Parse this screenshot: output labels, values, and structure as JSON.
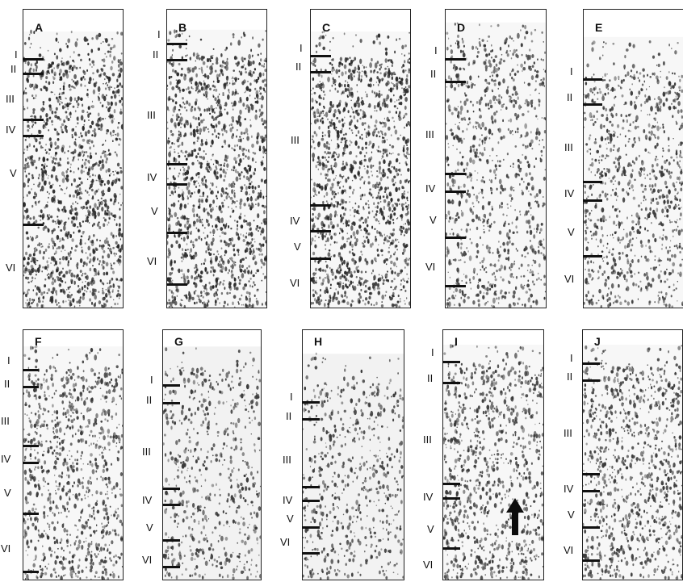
{
  "panels": [
    {
      "id": "A",
      "layers": [
        "I",
        "II",
        "III",
        "IV",
        "V",
        "VI"
      ],
      "stain": "dark"
    },
    {
      "id": "B",
      "layers": [
        "I",
        "II",
        "III",
        "IV",
        "V",
        "VI"
      ],
      "stain": "dark"
    },
    {
      "id": "C",
      "layers": [
        "I",
        "II",
        "III",
        "IV",
        "V",
        "VI"
      ],
      "stain": "dark"
    },
    {
      "id": "D",
      "layers": [
        "I",
        "II",
        "III",
        "IV",
        "V",
        "VI"
      ],
      "stain": "light"
    },
    {
      "id": "E",
      "layers": [
        "I",
        "II",
        "III",
        "IV",
        "V",
        "VI"
      ],
      "stain": "light"
    },
    {
      "id": "F",
      "layers": [
        "I",
        "II",
        "III",
        "IV",
        "V",
        "VI"
      ],
      "stain": "light"
    },
    {
      "id": "G",
      "layers": [
        "I",
        "II",
        "III",
        "IV",
        "V",
        "VI"
      ],
      "stain": "pale"
    },
    {
      "id": "H",
      "layers": [
        "I",
        "II",
        "III",
        "IV",
        "V",
        "VI"
      ],
      "stain": "pale"
    },
    {
      "id": "I",
      "layers": [
        "I",
        "II",
        "III",
        "IV",
        "V",
        "VI"
      ],
      "stain": "light",
      "arrow": true
    },
    {
      "id": "J",
      "layers": [
        "I",
        "II",
        "III",
        "IV",
        "V",
        "VI"
      ],
      "stain": "light"
    }
  ],
  "colors": {
    "border": "#222222",
    "ink": "#111111",
    "stain_dark": "#2a2a2a",
    "stain_light": "#3a3a3a",
    "background": "#ffffff"
  }
}
